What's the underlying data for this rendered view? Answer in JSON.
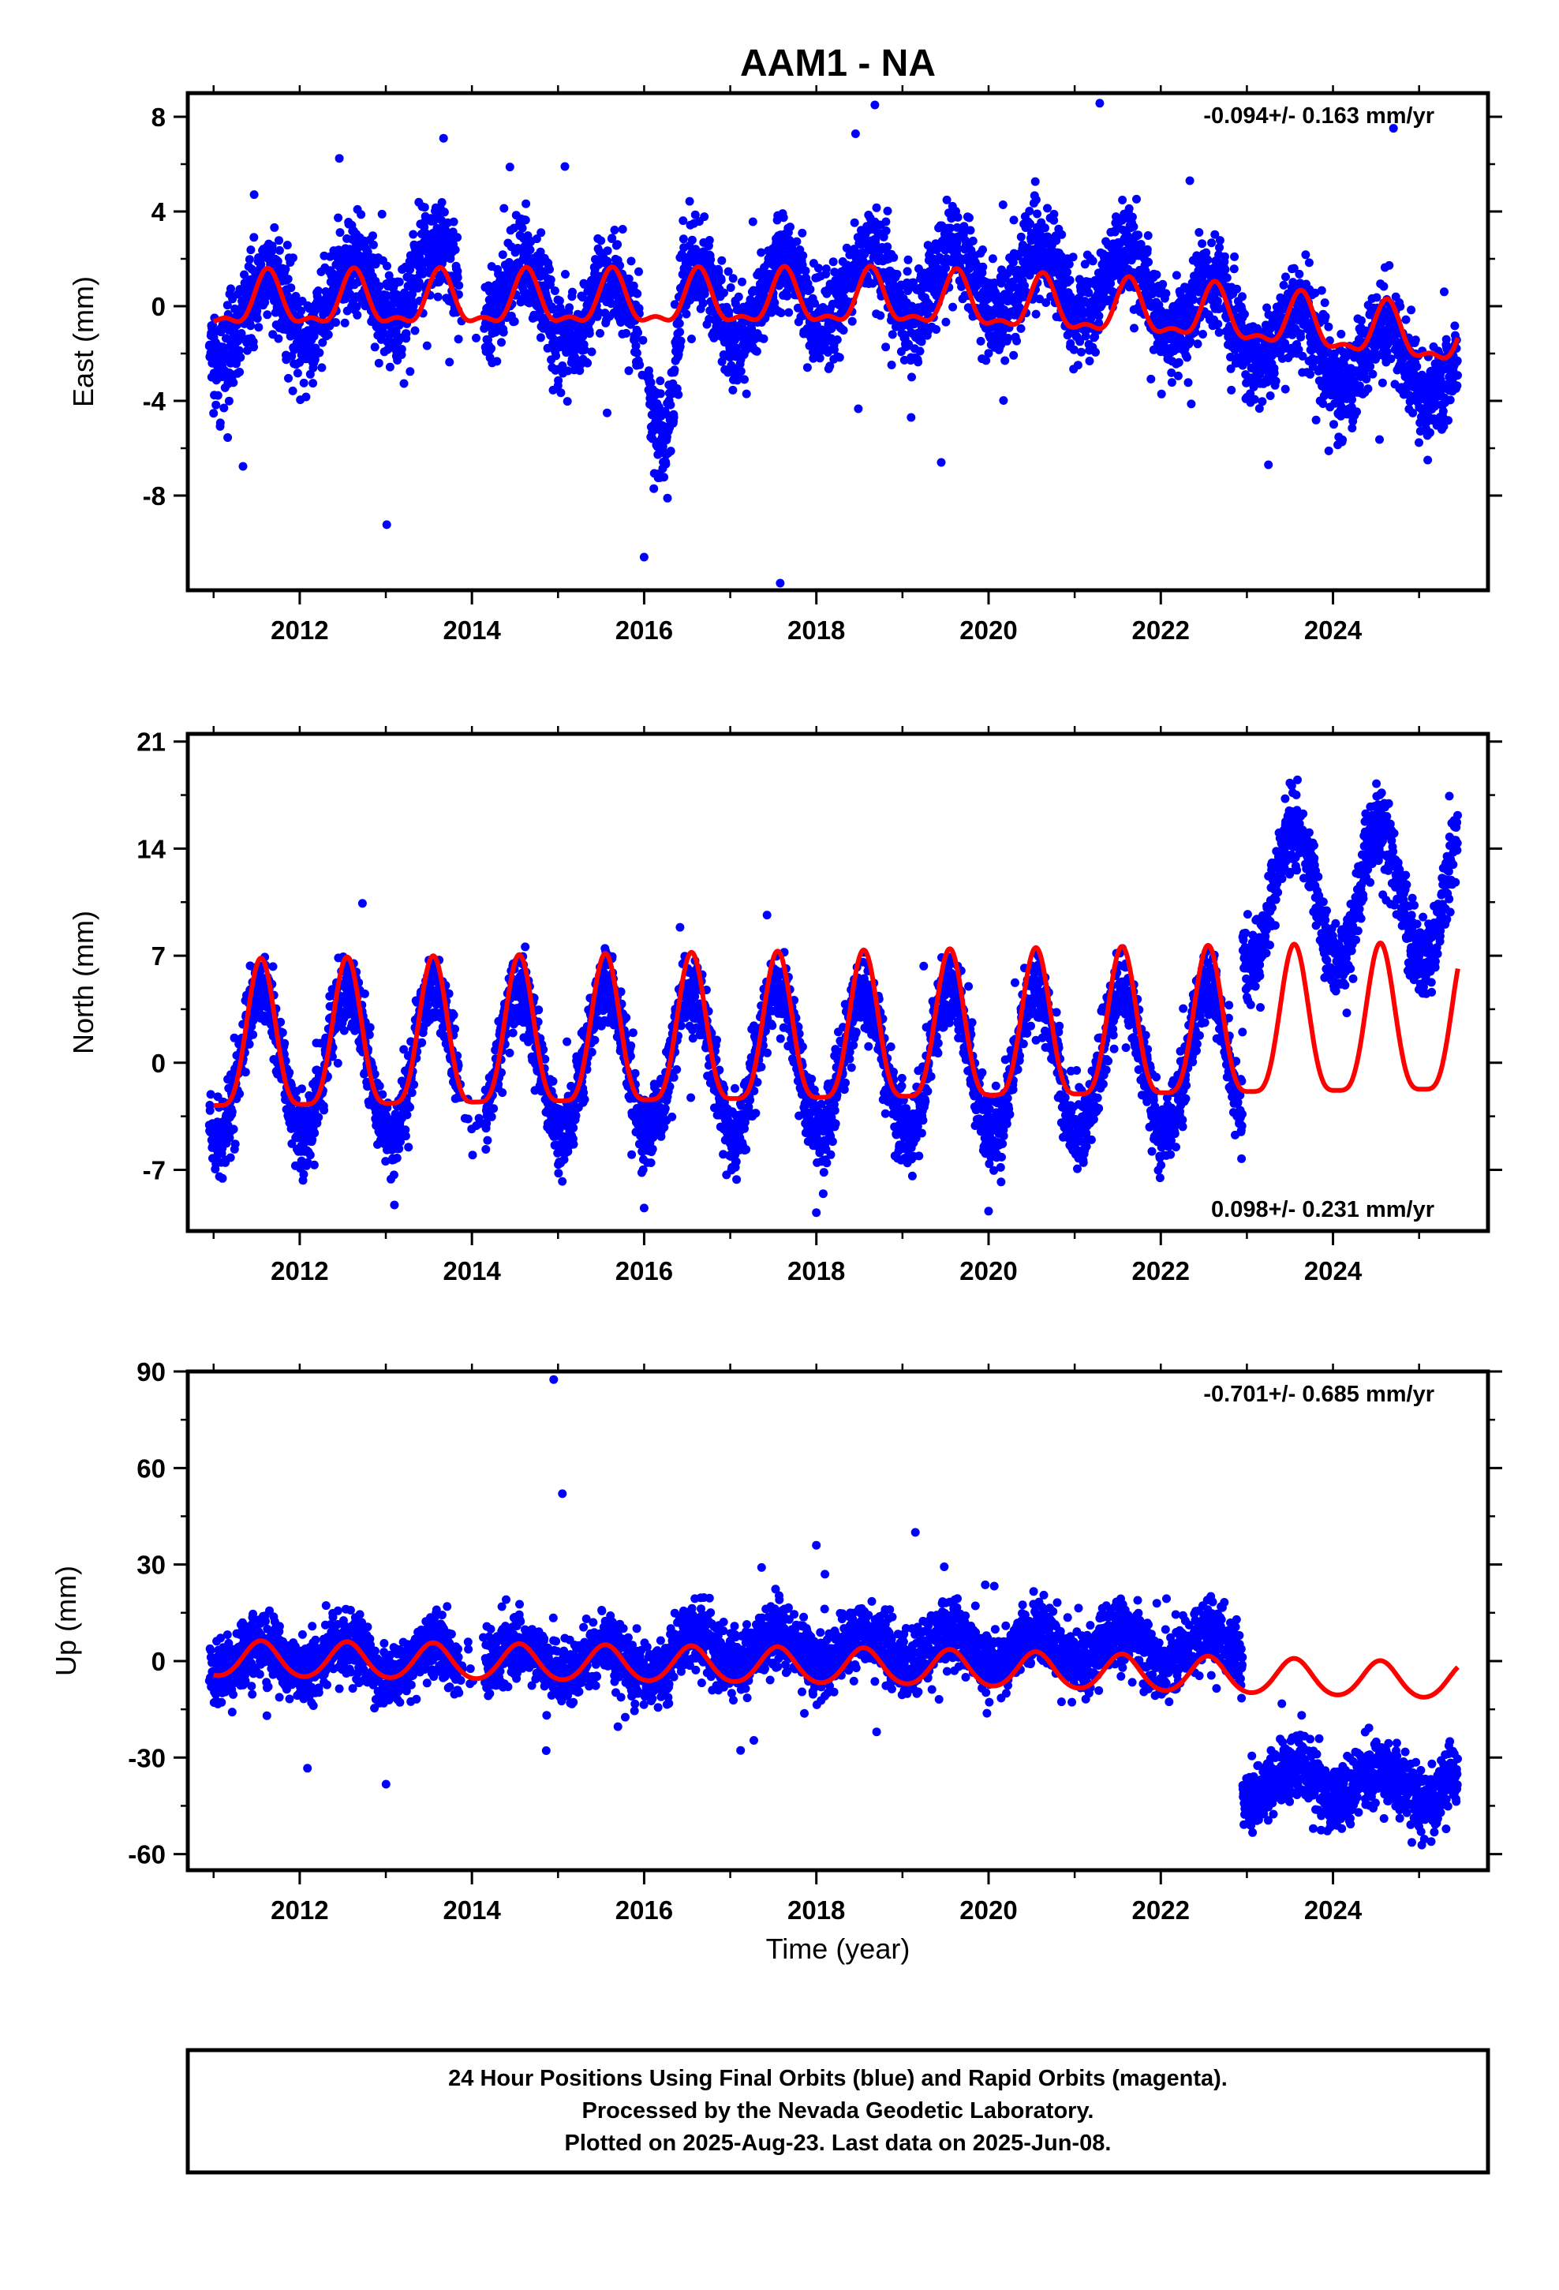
{
  "title": "AAM1 - NA",
  "colors": {
    "final_orbits": "#0000ff",
    "model": "#ff0000",
    "frame": "#000000"
  },
  "footer": {
    "lines": [
      "24 Hour Positions Using Final Orbits (blue) and Rapid Orbits (magenta).",
      "Processed by the Nevada Geodetic Laboratory.",
      "Plotted on 2025-Aug-23. Last data on 2025-Jun-08."
    ]
  },
  "chart_data": [
    {
      "type": "scatter",
      "panel": "east",
      "title": "",
      "xlabel": "",
      "ylabel": "East (mm)",
      "xlim": [
        2010.7,
        2025.8
      ],
      "ylim": [
        -12,
        9
      ],
      "x_ticks": [
        "2012",
        "2014",
        "2016",
        "2018",
        "2020",
        "2022",
        "2024"
      ],
      "y_ticks": [
        "8",
        "4",
        "0",
        "-4",
        "-8"
      ],
      "grid": false,
      "rate_label": "-0.094+/- 0.163 mm/yr",
      "data_start": 2010.95,
      "data_end": 2025.45,
      "series": [
        {
          "name": "Final Orbits",
          "color": "#0000ff",
          "trend": [
            [
              2011.0,
              -0.8
            ],
            [
              2013.5,
              1.2
            ],
            [
              2015.5,
              -0.3
            ],
            [
              2017.0,
              0.1
            ],
            [
              2019.0,
              1.0
            ],
            [
              2021.5,
              1.0
            ],
            [
              2023.0,
              -0.8
            ],
            [
              2024.0,
              -2.0
            ],
            [
              2025.45,
              -2.8
            ]
          ],
          "annual_amplitude": 1.5,
          "annual_phase": 2011.6,
          "noise_sd": 1.0,
          "gaps": [
            [
              2013.85,
              2014.15
            ],
            [
              2015.95,
              2016.05
            ]
          ],
          "events": [
            [
              2016.0,
              2016.45,
              -4.5
            ]
          ],
          "outliers": [
            [
              2018.68,
              8.5
            ],
            [
              2015.08,
              5.9
            ],
            [
              2017.58,
              -11.7
            ],
            [
              2016.0,
              -10.6
            ],
            [
              2019.1,
              -4.7
            ],
            [
              2019.45,
              -6.6
            ],
            [
              2023.25,
              -6.7
            ],
            [
              2025.1,
              -6.5
            ]
          ]
        },
        {
          "name": "Model",
          "color": "#ff0000",
          "x": [
            2011.0,
            2025.45
          ],
          "trend": [
            [
              2011.0,
              0.1
            ],
            [
              2019.0,
              0.2
            ],
            [
              2022.5,
              -0.4
            ],
            [
              2025.45,
              -1.5
            ]
          ],
          "annual_amplitude": 1.05,
          "semiannual_amplitude": 0.45,
          "phase": 2011.63
        }
      ]
    },
    {
      "type": "scatter",
      "panel": "north",
      "title": "",
      "xlabel": "",
      "ylabel": "North (mm)",
      "xlim": [
        2010.7,
        2025.8
      ],
      "ylim": [
        -11,
        21.5
      ],
      "x_ticks": [
        "2012",
        "2014",
        "2016",
        "2018",
        "2020",
        "2022",
        "2024"
      ],
      "y_ticks": [
        "21",
        "14",
        "7",
        "0",
        "-7"
      ],
      "grid": false,
      "rate_label": "0.098+/- 0.231 mm/yr",
      "data_start": 2010.95,
      "data_end": 2025.45,
      "offset": {
        "epoch": 2022.95,
        "before": 0.0,
        "after": 11.0
      },
      "series": [
        {
          "name": "Final Orbits",
          "color": "#0000ff",
          "trend": [
            [
              2011.0,
              0.0
            ],
            [
              2025.45,
              0.0
            ]
          ],
          "annual_amplitude": 4.8,
          "annual_phase": 2011.55,
          "annual_amplitude_after": 4.5,
          "noise_sd": 1.2,
          "gaps": [
            [
              2013.85,
              2014.15
            ]
          ],
          "outliers": [
            [
              2013.1,
              -9.3
            ],
            [
              2016.0,
              -9.5
            ],
            [
              2018.0,
              -9.8
            ],
            [
              2020.0,
              -9.7
            ]
          ]
        },
        {
          "name": "Model",
          "color": "#ff0000",
          "x": [
            2011.0,
            2025.45
          ],
          "trend": [
            [
              2011.0,
              0.8
            ],
            [
              2025.45,
              1.9
            ]
          ],
          "annual_amplitude": 4.8,
          "semiannual_amplitude": 1.2,
          "phase": 2011.55
        }
      ]
    },
    {
      "type": "scatter",
      "panel": "up",
      "title": "",
      "xlabel": "Time (year)",
      "ylabel": "Up (mm)",
      "xlim": [
        2010.7,
        2025.8
      ],
      "ylim": [
        -65,
        90
      ],
      "x_ticks": [
        "2012",
        "2014",
        "2016",
        "2018",
        "2020",
        "2022",
        "2024"
      ],
      "y_ticks": [
        "90",
        "60",
        "30",
        "0",
        "-30",
        "-60"
      ],
      "grid": false,
      "rate_label": "-0.701+/- 0.685 mm/yr",
      "data_start": 2010.95,
      "data_end": 2025.45,
      "offset": {
        "epoch": 2022.95,
        "before": 0.0,
        "after": -38.0
      },
      "series": [
        {
          "name": "Final Orbits",
          "color": "#0000ff",
          "trend": [
            [
              2011.0,
              1.0
            ],
            [
              2016.3,
              0.0
            ],
            [
              2016.6,
              4.0
            ],
            [
              2022.9,
              4.0
            ],
            [
              2023.0,
              0.0
            ],
            [
              2025.45,
              0.0
            ]
          ],
          "annual_amplitude": 5.0,
          "annual_phase": 2011.55,
          "noise_sd": 5.0,
          "gaps": [
            [
              2013.85,
              2014.15
            ]
          ],
          "outliers": [
            [
              2014.95,
              87.5
            ],
            [
              2015.05,
              52.0
            ],
            [
              2018.0,
              36.0
            ],
            [
              2019.15,
              40.0
            ],
            [
              2018.7,
              -22.0
            ],
            [
              2018.1,
              27.0
            ]
          ]
        },
        {
          "name": "Model",
          "color": "#ff0000",
          "x": [
            2011.0,
            2025.45
          ],
          "trend": [
            [
              2011.0,
              0.5
            ],
            [
              2019.0,
              -2.0
            ],
            [
              2025.45,
              -6.5
            ]
          ],
          "annual_amplitude": 5.5,
          "semiannual_amplitude": 0.5,
          "phase": 2011.55
        }
      ]
    }
  ]
}
